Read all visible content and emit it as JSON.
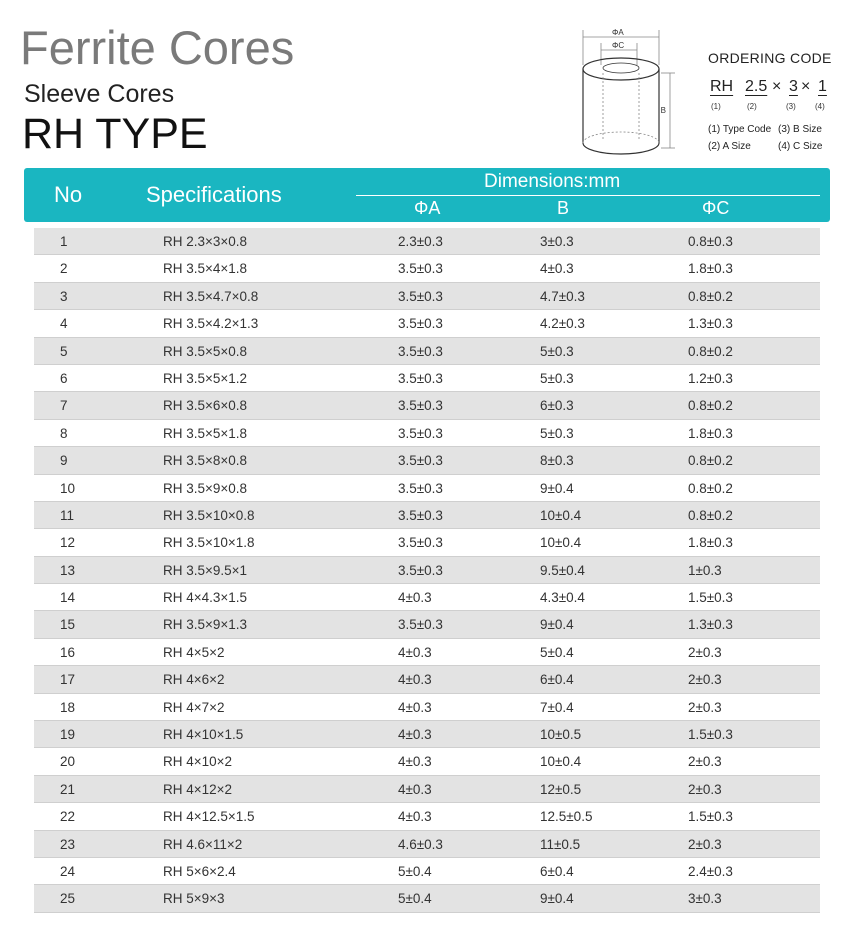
{
  "header": {
    "title": "Ferrite Cores",
    "subtitle": "Sleeve Cores",
    "type": "RH TYPE"
  },
  "diagram": {
    "label_a": "ΦA",
    "label_c": "ΦC",
    "label_b": "B"
  },
  "ordering": {
    "title": "ORDERING CODE",
    "code": [
      "RH",
      "2.5",
      "3",
      "1"
    ],
    "separator": "×",
    "indices": [
      "(1)",
      "(2)",
      "(3)",
      "(4)"
    ],
    "legend": [
      "(1) Type Code",
      "(3) B Size",
      "(2) A Size",
      "(4) C Size"
    ]
  },
  "table": {
    "headers": {
      "no": "No",
      "spec": "Specifications",
      "dims": "Dimensions:mm",
      "a": "ΦA",
      "b": "B",
      "c": "ΦC"
    },
    "accent": "#1ab6c1",
    "rows": [
      [
        "1",
        "RH 2.3×3×0.8",
        "2.3±0.3",
        "3±0.3",
        "0.8±0.3"
      ],
      [
        "2",
        "RH 3.5×4×1.8",
        "3.5±0.3",
        "4±0.3",
        "1.8±0.3"
      ],
      [
        "3",
        "RH 3.5×4.7×0.8",
        "3.5±0.3",
        "4.7±0.3",
        "0.8±0.2"
      ],
      [
        "4",
        "RH 3.5×4.2×1.3",
        "3.5±0.3",
        "4.2±0.3",
        "1.3±0.3"
      ],
      [
        "5",
        "RH 3.5×5×0.8",
        "3.5±0.3",
        "5±0.3",
        "0.8±0.2"
      ],
      [
        "6",
        "RH 3.5×5×1.2",
        "3.5±0.3",
        "5±0.3",
        "1.2±0.3"
      ],
      [
        "7",
        "RH 3.5×6×0.8",
        "3.5±0.3",
        "6±0.3",
        "0.8±0.2"
      ],
      [
        "8",
        "RH 3.5×5×1.8",
        "3.5±0.3",
        "5±0.3",
        "1.8±0.3"
      ],
      [
        "9",
        "RH 3.5×8×0.8",
        "3.5±0.3",
        "8±0.3",
        "0.8±0.2"
      ],
      [
        "10",
        "RH 3.5×9×0.8",
        "3.5±0.3",
        "9±0.4",
        "0.8±0.2"
      ],
      [
        "11",
        "RH 3.5×10×0.8",
        "3.5±0.3",
        "10±0.4",
        "0.8±0.2"
      ],
      [
        "12",
        "RH 3.5×10×1.8",
        "3.5±0.3",
        "10±0.4",
        "1.8±0.3"
      ],
      [
        "13",
        "RH 3.5×9.5×1",
        "3.5±0.3",
        "9.5±0.4",
        "1±0.3"
      ],
      [
        "14",
        "RH 4×4.3×1.5",
        "4±0.3",
        "4.3±0.4",
        "1.5±0.3"
      ],
      [
        "15",
        "RH 3.5×9×1.3",
        "3.5±0.3",
        "9±0.4",
        "1.3±0.3"
      ],
      [
        "16",
        "RH 4×5×2",
        "4±0.3",
        "5±0.4",
        "2±0.3"
      ],
      [
        "17",
        "RH 4×6×2",
        "4±0.3",
        "6±0.4",
        "2±0.3"
      ],
      [
        "18",
        "RH 4×7×2",
        "4±0.3",
        "7±0.4",
        "2±0.3"
      ],
      [
        "19",
        "RH 4×10×1.5",
        "4±0.3",
        "10±0.5",
        "1.5±0.3"
      ],
      [
        "20",
        "RH 4×10×2",
        "4±0.3",
        "10±0.4",
        "2±0.3"
      ],
      [
        "21",
        "RH 4×12×2",
        "4±0.3",
        "12±0.5",
        "2±0.3"
      ],
      [
        "22",
        "RH 4×12.5×1.5",
        "4±0.3",
        "12.5±0.5",
        "1.5±0.3"
      ],
      [
        "23",
        "RH 4.6×11×2",
        "4.6±0.3",
        "11±0.5",
        "2±0.3"
      ],
      [
        "24",
        "RH 5×6×2.4",
        "5±0.4",
        "6±0.4",
        "2.4±0.3"
      ],
      [
        "25",
        "RH 5×9×3",
        "5±0.4",
        "9±0.4",
        "3±0.3"
      ]
    ]
  }
}
